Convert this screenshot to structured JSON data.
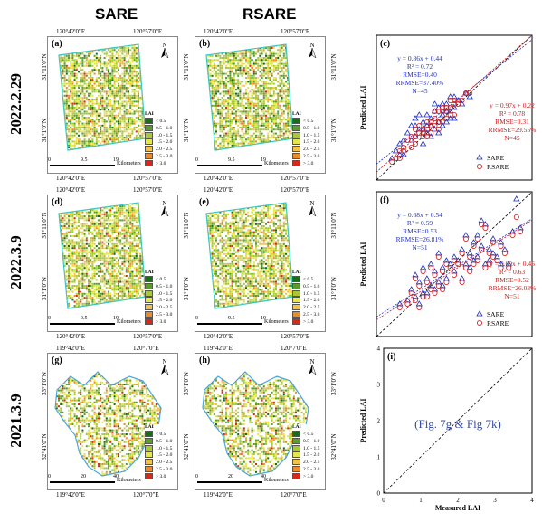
{
  "columns": {
    "sare": "SARE",
    "rsare": "RSARE"
  },
  "rows": [
    {
      "label": "2022.2.29",
      "top_left": "120°42'0\"E",
      "top_right": "120°57'0\"E",
      "lat_top": "31°11'0\"N",
      "lat_bottom": "31°1'0\"N",
      "bottom_left": "",
      "bottom_right": "",
      "panels": [
        "(a)",
        "(b)"
      ],
      "scale": [
        "0",
        "9.5",
        "19"
      ],
      "scale_unit": "Kilometers",
      "chart_panel": "(c)"
    },
    {
      "label": "2022.3.9",
      "top_left": "120°42'0\"E",
      "top_right": "120°57'0\"E",
      "lat_top": "31°11'0\"N",
      "lat_bottom": "31°1'0\"N",
      "bottom_left": "120°42'0\"E",
      "bottom_right": "120°57'0\"E",
      "panels": [
        "(d)",
        "(e)"
      ],
      "scale": [
        "0",
        "9.5",
        "19"
      ],
      "scale_unit": "Kilometers",
      "chart_panel": "(f)"
    },
    {
      "label": "2021.3.9",
      "top_left": "119°42'0\"E",
      "top_right": "120°7'0\"E",
      "lat_top": "33°1'0\"N",
      "lat_bottom": "32°41'0\"N",
      "bottom_left": "119°42'0\"E",
      "bottom_right": "120°7'0\"E",
      "panels": [
        "(g)",
        "(h)"
      ],
      "scale": [
        "0",
        "20",
        "40"
      ],
      "scale_unit": "Kilometers",
      "chart_panel": "(i)"
    }
  ],
  "row1_bottom": {
    "left": "120°42'0\"E",
    "right": "120°57'0\"E"
  },
  "north": "N",
  "legend": {
    "title": "LAI",
    "items": [
      {
        "label": "< 0.5",
        "color": "#1a6b1a"
      },
      {
        "label": "0.5 - 1.0",
        "color": "#5a9e2a"
      },
      {
        "label": "1.0 - 1.5",
        "color": "#a8c83a"
      },
      {
        "label": "1.5 - 2.0",
        "color": "#e4e650"
      },
      {
        "label": "2.0 - 2.5",
        "color": "#f2c24a"
      },
      {
        "label": "2.5 - 3.0",
        "color": "#ec8a2e"
      },
      {
        "label": "> 3.0",
        "color": "#d42a1c"
      }
    ]
  },
  "colors": {
    "sare": "#1f2fbf",
    "rsare": "#d01818",
    "boundary": "#3ec6c0",
    "boundary_h": "#4aa6dc"
  },
  "chart_data": [
    {
      "type": "scatter",
      "panel": "(c)",
      "xlabel": "",
      "ylabel": "Predicted LAI",
      "xlim": [
        0,
        4
      ],
      "ylim": [
        0,
        4
      ],
      "sare_stats": [
        "y = 0.86x + 0.44",
        "R² = 0.72",
        "RMSE=0.40",
        "RRMSE=37.40%",
        "N=45"
      ],
      "rsare_stats": [
        "y = 0.97x + 0.22",
        "R² = 0.78",
        "RMSE=0.31",
        "RRMSE=29.55%",
        "N=45"
      ],
      "legend": [
        "SARE",
        "RSARE"
      ],
      "series": [
        {
          "name": "SARE",
          "marker": "triangle",
          "fit": [
            0.86,
            0.44
          ],
          "points": [
            [
              0.4,
              0.6
            ],
            [
              0.5,
              0.8
            ],
            [
              0.6,
              1.0
            ],
            [
              0.7,
              0.7
            ],
            [
              0.8,
              1.3
            ],
            [
              0.9,
              1.1
            ],
            [
              1.0,
              1.5
            ],
            [
              1.0,
              1.2
            ],
            [
              1.1,
              1.4
            ],
            [
              1.2,
              1.6
            ],
            [
              1.2,
              1.0
            ],
            [
              1.3,
              1.5
            ],
            [
              1.3,
              1.8
            ],
            [
              1.4,
              1.2
            ],
            [
              1.4,
              1.7
            ],
            [
              1.5,
              1.9
            ],
            [
              1.5,
              1.4
            ],
            [
              1.6,
              1.6
            ],
            [
              1.6,
              2.0
            ],
            [
              1.7,
              1.5
            ],
            [
              1.7,
              1.8
            ],
            [
              1.8,
              2.1
            ],
            [
              1.8,
              1.6
            ],
            [
              1.9,
              1.9
            ],
            [
              1.9,
              2.3
            ],
            [
              2.0,
              1.7
            ],
            [
              2.0,
              2.0
            ],
            [
              2.1,
              2.2
            ],
            [
              0.9,
              1.5
            ],
            [
              1.1,
              1.8
            ],
            [
              1.3,
              1.3
            ],
            [
              1.5,
              2.1
            ],
            [
              1.6,
              1.3
            ],
            [
              1.8,
              1.9
            ],
            [
              2.2,
              2.1
            ],
            [
              2.3,
              2.4
            ],
            [
              0.7,
              1.1
            ],
            [
              1.0,
              1.7
            ],
            [
              1.2,
              1.4
            ],
            [
              1.4,
              1.5
            ],
            [
              1.7,
              2.1
            ],
            [
              2.0,
              2.3
            ],
            [
              2.4,
              2.3
            ],
            [
              1.9,
              1.7
            ],
            [
              0.6,
              0.7
            ]
          ]
        },
        {
          "name": "RSARE",
          "marker": "circle",
          "fit": [
            0.97,
            0.22
          ],
          "points": [
            [
              0.4,
              0.5
            ],
            [
              0.5,
              0.6
            ],
            [
              0.6,
              0.8
            ],
            [
              0.7,
              0.9
            ],
            [
              0.8,
              1.1
            ],
            [
              0.9,
              0.9
            ],
            [
              1.0,
              1.2
            ],
            [
              1.0,
              1.0
            ],
            [
              1.1,
              1.3
            ],
            [
              1.2,
              1.4
            ],
            [
              1.2,
              1.2
            ],
            [
              1.3,
              1.4
            ],
            [
              1.3,
              1.6
            ],
            [
              1.4,
              1.3
            ],
            [
              1.4,
              1.6
            ],
            [
              1.5,
              1.7
            ],
            [
              1.5,
              1.5
            ],
            [
              1.6,
              1.6
            ],
            [
              1.6,
              1.9
            ],
            [
              1.7,
              1.6
            ],
            [
              1.7,
              1.9
            ],
            [
              1.8,
              2.0
            ],
            [
              1.8,
              1.7
            ],
            [
              1.9,
              2.0
            ],
            [
              1.9,
              2.2
            ],
            [
              2.0,
              1.8
            ],
            [
              2.0,
              2.1
            ],
            [
              2.1,
              2.1
            ],
            [
              0.9,
              1.2
            ],
            [
              1.1,
              1.5
            ],
            [
              1.3,
              1.2
            ],
            [
              1.5,
              1.9
            ],
            [
              1.6,
              1.4
            ],
            [
              1.8,
              1.9
            ],
            [
              2.2,
              2.2
            ],
            [
              2.3,
              2.4
            ],
            [
              0.7,
              0.8
            ],
            [
              1.0,
              1.4
            ],
            [
              1.2,
              1.3
            ],
            [
              1.4,
              1.5
            ],
            [
              1.7,
              2.0
            ],
            [
              2.0,
              2.2
            ],
            [
              2.4,
              2.4
            ],
            [
              1.9,
              1.8
            ],
            [
              0.6,
              0.6
            ]
          ]
        }
      ]
    },
    {
      "type": "scatter",
      "panel": "(f)",
      "xlabel": "",
      "ylabel": "Predicted LAI",
      "xlim": [
        0,
        4
      ],
      "ylim": [
        0,
        4
      ],
      "sare_stats": [
        "y = 0.68x + 0.54",
        "R² = 0.59",
        "RMSE=0.53",
        "RRMSE=26.81%",
        "N=51"
      ],
      "rsare_stats": [
        "y = 0.69x + 0.46",
        "R² = 0.63",
        "RMSE=0.52",
        "RRMSE=26.03%",
        "N=51"
      ],
      "legend": [
        "SARE",
        "RSARE"
      ],
      "series": [
        {
          "name": "SARE",
          "marker": "triangle",
          "fit": [
            0.68,
            0.54
          ],
          "points": [
            [
              0.6,
              0.9
            ],
            [
              0.8,
              1.0
            ],
            [
              0.9,
              1.3
            ],
            [
              1.0,
              1.1
            ],
            [
              1.1,
              1.5
            ],
            [
              1.2,
              1.2
            ],
            [
              1.3,
              1.6
            ],
            [
              1.4,
              1.4
            ],
            [
              1.5,
              1.8
            ],
            [
              1.6,
              1.5
            ],
            [
              1.7,
              1.9
            ],
            [
              1.8,
              1.6
            ],
            [
              1.9,
              2.0
            ],
            [
              2.0,
              1.8
            ],
            [
              2.0,
              2.2
            ],
            [
              2.1,
              2.1
            ],
            [
              2.2,
              2.4
            ],
            [
              2.3,
              2.0
            ],
            [
              2.4,
              2.3
            ],
            [
              2.5,
              2.6
            ],
            [
              2.6,
              2.2
            ],
            [
              2.7,
              2.5
            ],
            [
              2.8,
              2.0
            ],
            [
              2.9,
              2.4
            ],
            [
              3.0,
              2.7
            ],
            [
              3.1,
              2.2
            ],
            [
              3.2,
              2.6
            ],
            [
              3.4,
              2.0
            ],
            [
              3.5,
              2.9
            ],
            [
              3.6,
              3.8
            ],
            [
              1.0,
              1.7
            ],
            [
              1.2,
              1.9
            ],
            [
              1.4,
              2.0
            ],
            [
              1.6,
              2.3
            ],
            [
              1.8,
              2.1
            ],
            [
              2.2,
              1.6
            ],
            [
              2.4,
              1.9
            ],
            [
              2.6,
              2.8
            ],
            [
              2.8,
              3.1
            ],
            [
              3.0,
              2.3
            ],
            [
              3.2,
              2.0
            ],
            [
              1.1,
              0.9
            ],
            [
              1.3,
              1.2
            ],
            [
              1.5,
              1.3
            ],
            [
              1.7,
              1.4
            ],
            [
              2.3,
              2.8
            ],
            [
              2.5,
              2.1
            ],
            [
              2.7,
              3.2
            ],
            [
              2.9,
              2.1
            ],
            [
              3.3,
              2.4
            ],
            [
              3.7,
              3.0
            ]
          ]
        },
        {
          "name": "RSARE",
          "marker": "circle",
          "fit": [
            0.69,
            0.46
          ],
          "points": [
            [
              0.6,
              0.8
            ],
            [
              0.8,
              0.9
            ],
            [
              0.9,
              1.2
            ],
            [
              1.0,
              1.0
            ],
            [
              1.1,
              1.4
            ],
            [
              1.2,
              1.1
            ],
            [
              1.3,
              1.5
            ],
            [
              1.4,
              1.3
            ],
            [
              1.5,
              1.7
            ],
            [
              1.6,
              1.4
            ],
            [
              1.7,
              1.8
            ],
            [
              1.8,
              1.5
            ],
            [
              1.9,
              1.9
            ],
            [
              2.0,
              1.7
            ],
            [
              2.0,
              2.1
            ],
            [
              2.1,
              2.0
            ],
            [
              2.2,
              2.3
            ],
            [
              2.3,
              1.9
            ],
            [
              2.4,
              2.2
            ],
            [
              2.5,
              2.5
            ],
            [
              2.6,
              2.1
            ],
            [
              2.7,
              2.4
            ],
            [
              2.8,
              1.9
            ],
            [
              2.9,
              2.3
            ],
            [
              3.0,
              2.6
            ],
            [
              3.1,
              2.1
            ],
            [
              3.2,
              2.5
            ],
            [
              3.4,
              1.9
            ],
            [
              3.5,
              2.8
            ],
            [
              3.6,
              3.3
            ],
            [
              1.0,
              1.6
            ],
            [
              1.2,
              1.8
            ],
            [
              1.4,
              1.9
            ],
            [
              1.6,
              2.2
            ],
            [
              1.8,
              2.0
            ],
            [
              2.2,
              1.5
            ],
            [
              2.4,
              1.8
            ],
            [
              2.6,
              2.7
            ],
            [
              2.8,
              3.0
            ],
            [
              3.0,
              2.2
            ],
            [
              3.2,
              1.9
            ],
            [
              1.1,
              0.8
            ],
            [
              1.3,
              1.1
            ],
            [
              1.5,
              1.2
            ],
            [
              1.7,
              1.3
            ],
            [
              2.3,
              2.7
            ],
            [
              2.5,
              2.0
            ],
            [
              2.7,
              3.1
            ],
            [
              2.9,
              2.0
            ],
            [
              3.3,
              2.3
            ],
            [
              3.7,
              2.9
            ]
          ]
        }
      ]
    },
    {
      "type": "scatter",
      "panel": "(i)",
      "xlabel": "Measured LAI",
      "ylabel": "Predicted LAI",
      "xlim": [
        0,
        4
      ],
      "ylim": [
        0,
        4
      ],
      "xticks": [
        "0",
        "1",
        "2",
        "3",
        "4"
      ],
      "yticks": [
        "0",
        "1",
        "2",
        "3",
        "4"
      ],
      "note": "(Fig. 7g & Fig 7k)",
      "series": []
    }
  ]
}
